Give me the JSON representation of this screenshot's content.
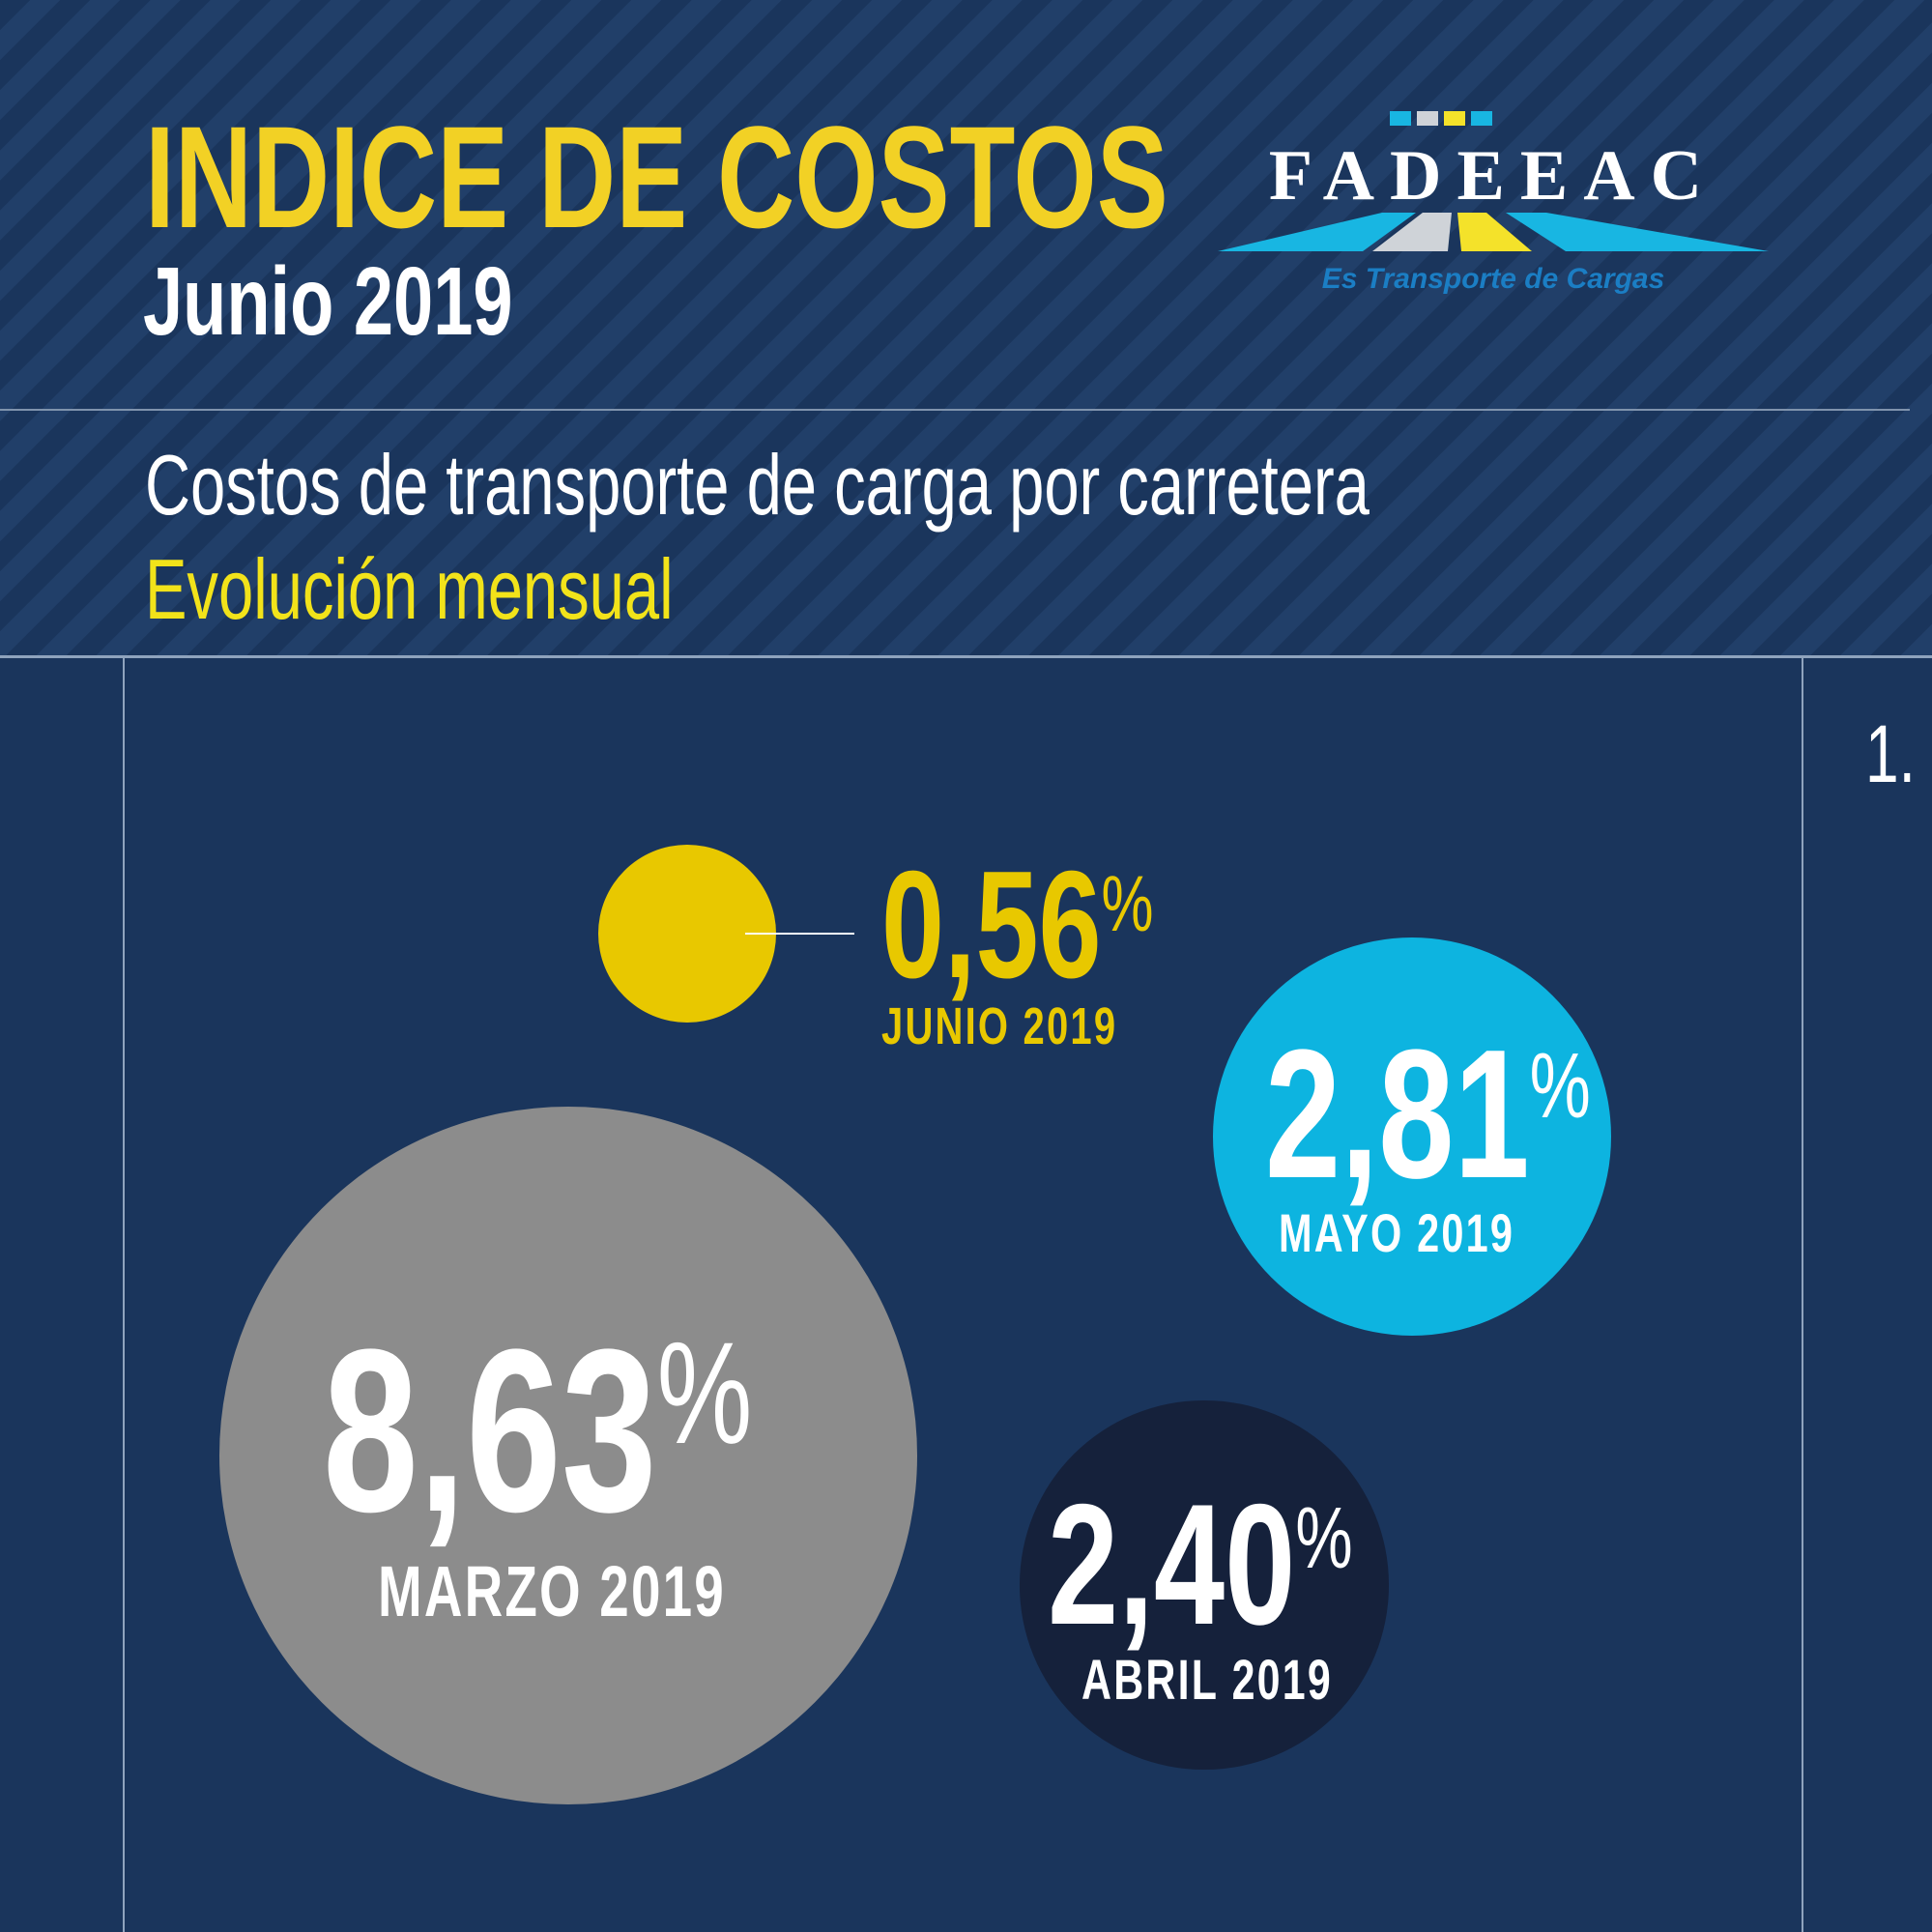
{
  "header": {
    "title": "INDICE DE COSTOS",
    "subtitle": "Junio 2019",
    "description": "Costos de transporte de carga por carretera",
    "description_highlight": "Evolución mensual",
    "page_number": "1."
  },
  "logo": {
    "name": "FADEEAC",
    "tagline": "Es Transporte de Cargas"
  },
  "colors": {
    "background": "#1a355c",
    "accent_yellow": "#f2d125",
    "junio": "#e8c800",
    "mayo": "#0db4e0",
    "abril": "#15213b",
    "marzo": "#8c8c8c"
  },
  "chart_data": {
    "type": "bubble",
    "title": "",
    "unit": "%",
    "series": [
      {
        "label": "JUNIO 2019",
        "value": 0.56,
        "display": "0,56",
        "color": "#e8c800"
      },
      {
        "label": "MAYO 2019",
        "value": 2.81,
        "display": "2,81",
        "color": "#0db4e0"
      },
      {
        "label": "ABRIL 2019",
        "value": 2.4,
        "display": "2,40",
        "color": "#15213b"
      },
      {
        "label": "MARZO 2019",
        "value": 8.63,
        "display": "8,63",
        "color": "#8c8c8c"
      }
    ]
  }
}
